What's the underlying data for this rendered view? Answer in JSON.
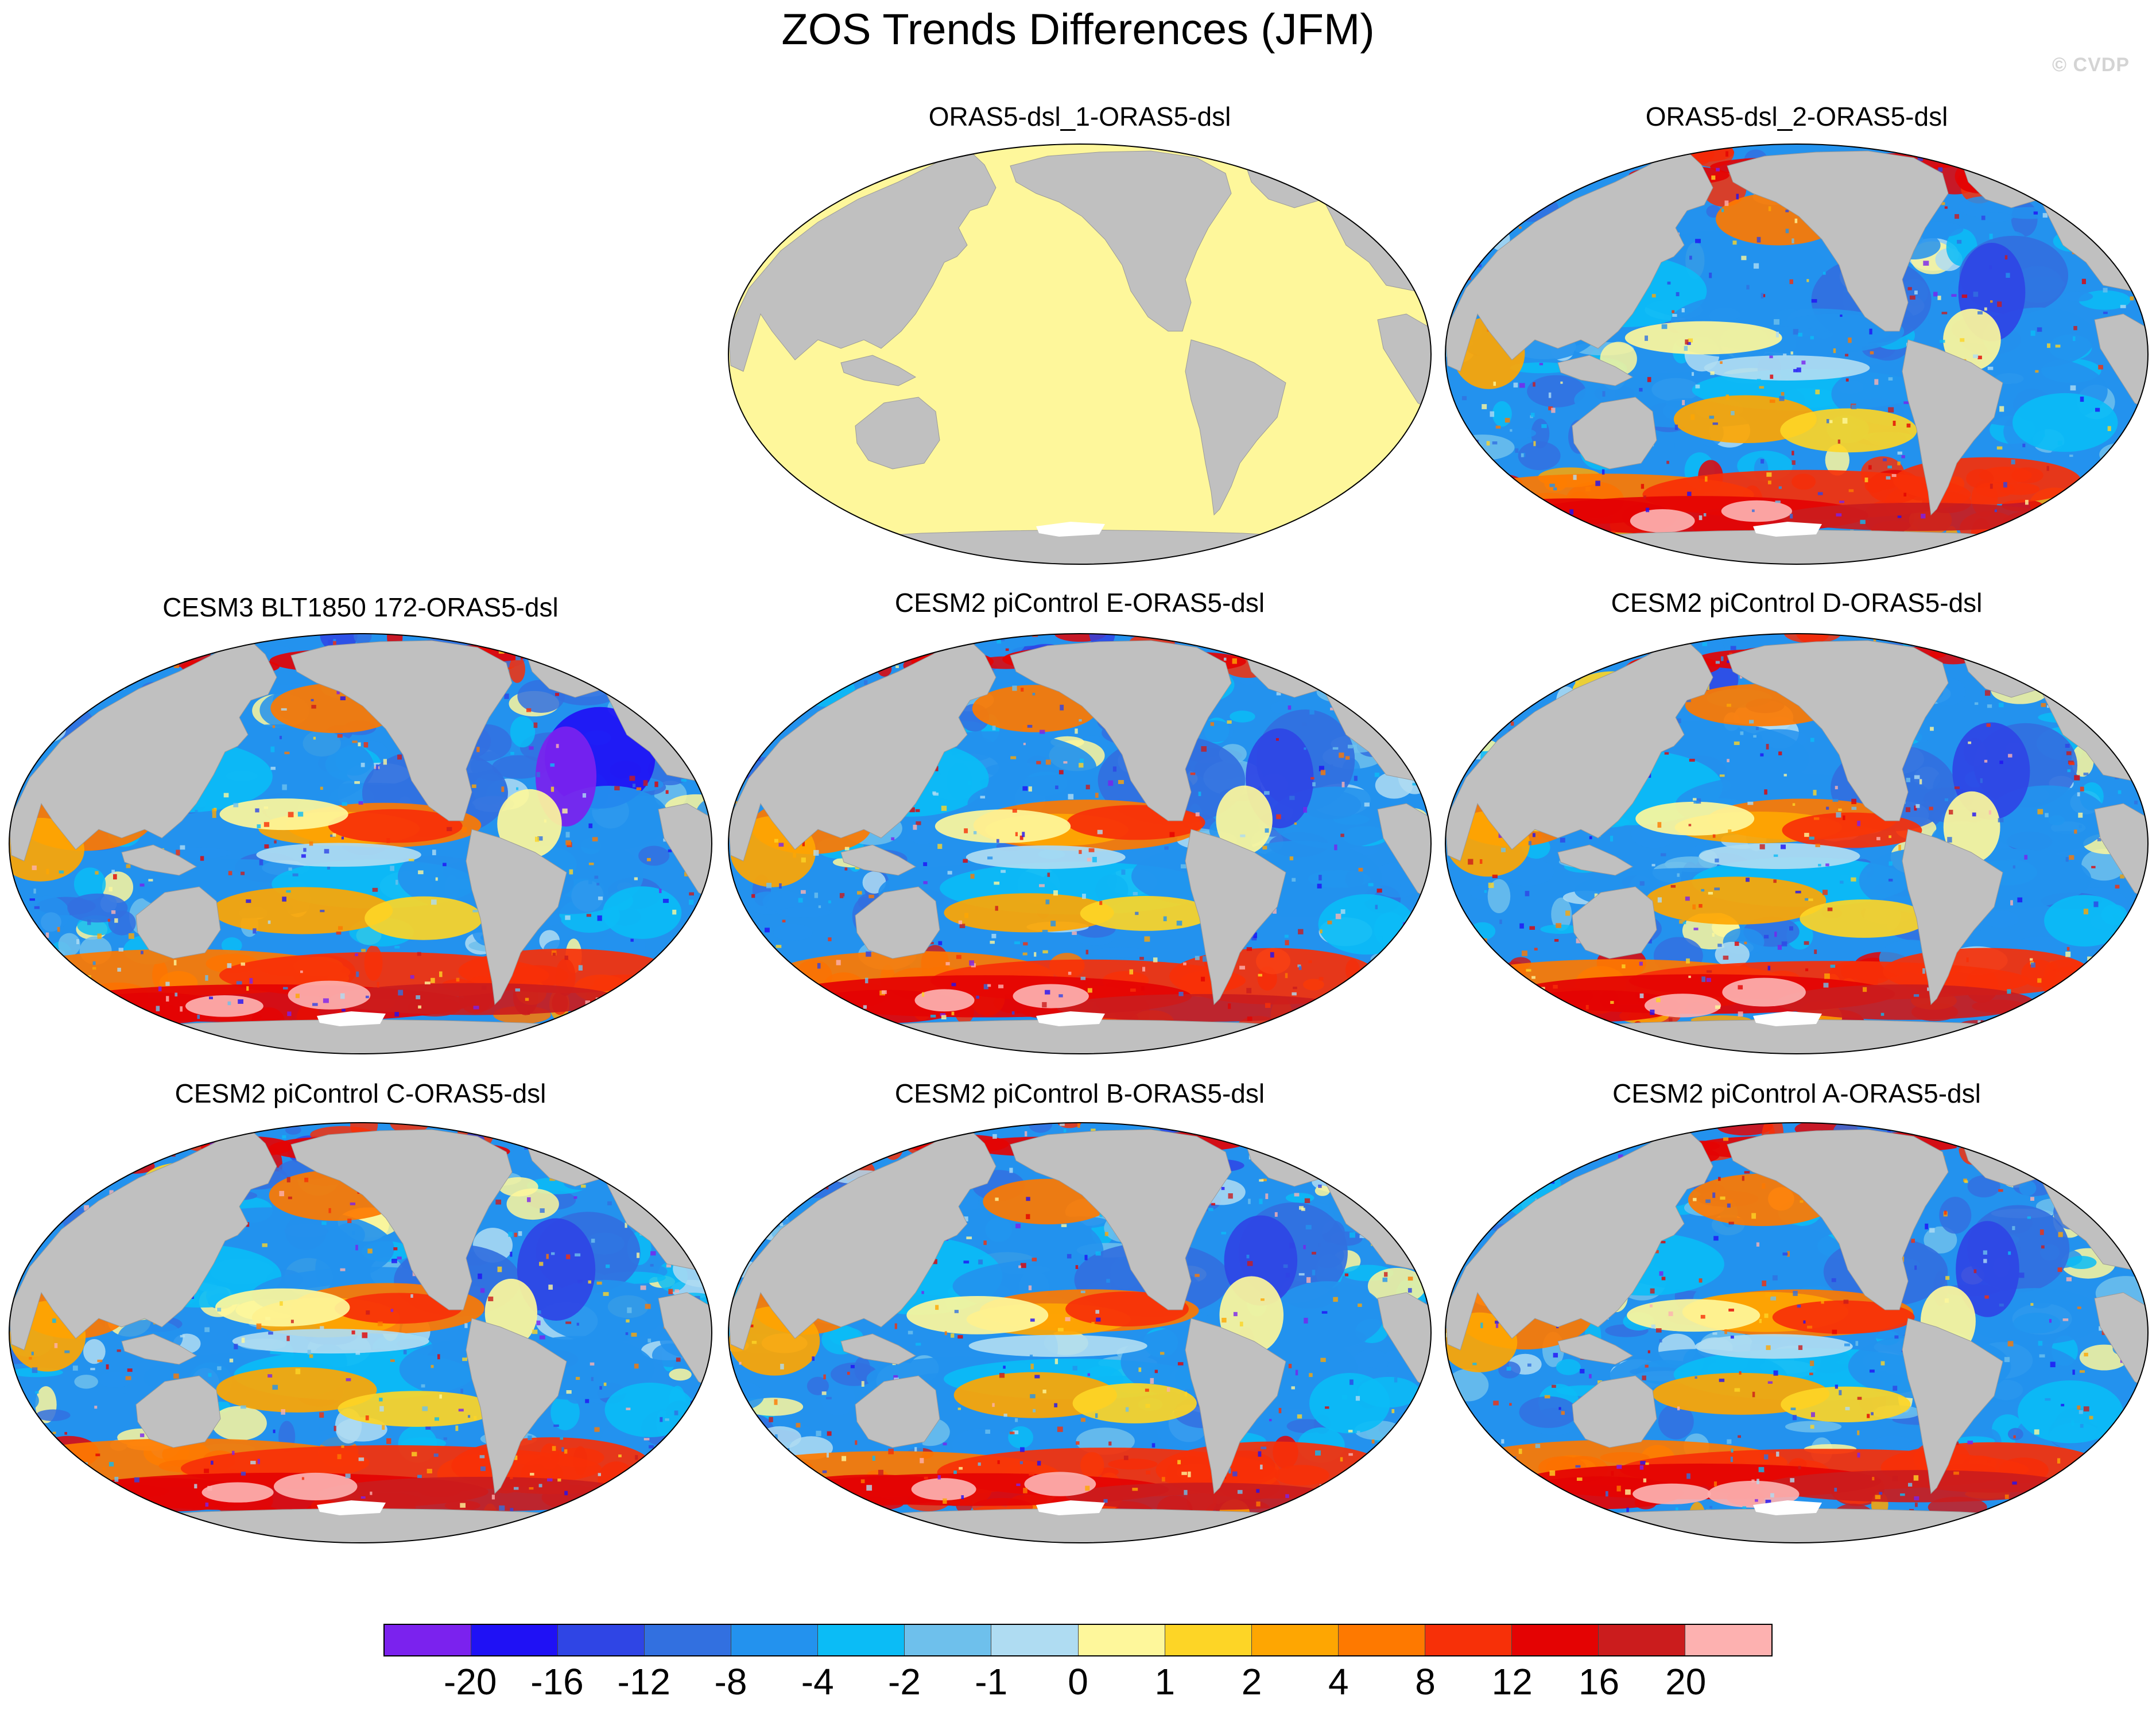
{
  "title": "ZOS Trends Differences (JFM)",
  "watermark": "© CVDP",
  "panels": [
    {
      "title": "ORAS5-dsl_1-ORAS5-dsl",
      "field": "uniform-zero"
    },
    {
      "title": "ORAS5-dsl_2-ORAS5-dsl",
      "field": "mixed"
    },
    {
      "title": "CESM3 BLT1850 172-ORAS5-dsl",
      "field": "mixed"
    },
    {
      "title": "CESM2 piControl E-ORAS5-dsl",
      "field": "mixed"
    },
    {
      "title": "CESM2 piControl D-ORAS5-dsl",
      "field": "mixed"
    },
    {
      "title": "CESM2 piControl C-ORAS5-dsl",
      "field": "mixed"
    },
    {
      "title": "CESM2 piControl B-ORAS5-dsl",
      "field": "mixed"
    },
    {
      "title": "CESM2 piControl A-ORAS5-dsl",
      "field": "mixed"
    }
  ],
  "colorbar": {
    "colors": [
      "#7b22ee",
      "#1f11f5",
      "#2f45e5",
      "#3270e0",
      "#2392ee",
      "#0bbcf6",
      "#6ec0ec",
      "#afdcf2",
      "#fef79b",
      "#fdd526",
      "#fea602",
      "#fe7900",
      "#f73008",
      "#e40303",
      "#cb1c1d",
      "#fdb1b0"
    ],
    "labels": [
      "-20",
      "-16",
      "-12",
      "-8",
      "-4",
      "-2",
      "-1",
      "0",
      "1",
      "2",
      "4",
      "8",
      "12",
      "16",
      "20"
    ]
  },
  "map_colors": {
    "land": "#c0c0c0",
    "ice_shelf": "#ffffff",
    "zero_fill": "#fef79b"
  }
}
